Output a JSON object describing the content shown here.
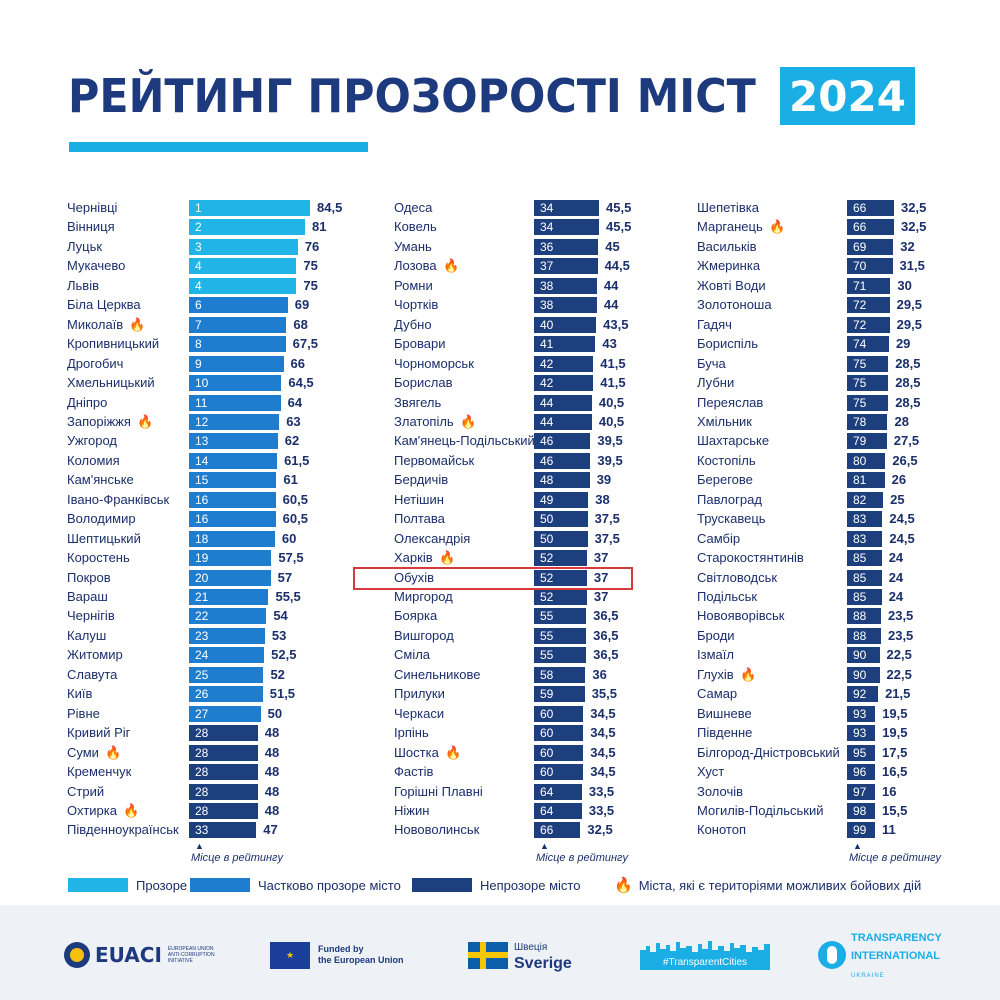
{
  "title": {
    "text": "РЕЙТИНГ ПРОЗОРОСТІ МІСТ",
    "year": "2024"
  },
  "colors": {
    "transparent": "#20b4e7",
    "partial": "#1f7dd0",
    "opaque": "#1d3f7e",
    "accent": "#1aaee4",
    "fire": "#f4a416",
    "highlight": "#d63a3a"
  },
  "axis_caption": "Місце в рейтингу",
  "fire_icon": "fire-icon",
  "highlight_city": "Обухів",
  "chart_data": {
    "type": "bar",
    "orientation": "horizontal",
    "max_score": 84.5,
    "categories": [
      "Прозоре місто",
      "Частково прозоре місто",
      "Непрозоре місто"
    ],
    "columns": [
      [
        {
          "city": "Чернівці",
          "rank": "1",
          "score": "84,5",
          "category": "transparent",
          "war": false
        },
        {
          "city": "Вінниця",
          "rank": "2",
          "score": "81",
          "category": "transparent",
          "war": false
        },
        {
          "city": "Луцьк",
          "rank": "3",
          "score": "76",
          "category": "transparent",
          "war": false
        },
        {
          "city": "Мукачево",
          "rank": "4",
          "score": "75",
          "category": "transparent",
          "war": false
        },
        {
          "city": "Львів",
          "rank": "4",
          "score": "75",
          "category": "transparent",
          "war": false
        },
        {
          "city": "Біла Церква",
          "rank": "6",
          "score": "69",
          "category": "partial",
          "war": false
        },
        {
          "city": "Миколаїв",
          "rank": "7",
          "score": "68",
          "category": "partial",
          "war": true
        },
        {
          "city": "Кропивницький",
          "rank": "8",
          "score": "67,5",
          "category": "partial",
          "war": false
        },
        {
          "city": "Дрогобич",
          "rank": "9",
          "score": "66",
          "category": "partial",
          "war": false
        },
        {
          "city": "Хмельницький",
          "rank": "10",
          "score": "64,5",
          "category": "partial",
          "war": false
        },
        {
          "city": "Дніпро",
          "rank": "11",
          "score": "64",
          "category": "partial",
          "war": false
        },
        {
          "city": "Запоріжжя",
          "rank": "12",
          "score": "63",
          "category": "partial",
          "war": true
        },
        {
          "city": "Ужгород",
          "rank": "13",
          "score": "62",
          "category": "partial",
          "war": false
        },
        {
          "city": "Коломия",
          "rank": "14",
          "score": "61,5",
          "category": "partial",
          "war": false
        },
        {
          "city": "Кам'янське",
          "rank": "15",
          "score": "61",
          "category": "partial",
          "war": false
        },
        {
          "city": "Івано-Франківськ",
          "rank": "16",
          "score": "60,5",
          "category": "partial",
          "war": false
        },
        {
          "city": "Володимир",
          "rank": "16",
          "score": "60,5",
          "category": "partial",
          "war": false
        },
        {
          "city": "Шептицький",
          "rank": "18",
          "score": "60",
          "category": "partial",
          "war": false
        },
        {
          "city": "Коростень",
          "rank": "19",
          "score": "57,5",
          "category": "partial",
          "war": false
        },
        {
          "city": "Покров",
          "rank": "20",
          "score": "57",
          "category": "partial",
          "war": false
        },
        {
          "city": "Вараш",
          "rank": "21",
          "score": "55,5",
          "category": "partial",
          "war": false
        },
        {
          "city": "Чернігів",
          "rank": "22",
          "score": "54",
          "category": "partial",
          "war": false
        },
        {
          "city": "Калуш",
          "rank": "23",
          "score": "53",
          "category": "partial",
          "war": false
        },
        {
          "city": "Житомир",
          "rank": "24",
          "score": "52,5",
          "category": "partial",
          "war": false
        },
        {
          "city": "Славута",
          "rank": "25",
          "score": "52",
          "category": "partial",
          "war": false
        },
        {
          "city": "Київ",
          "rank": "26",
          "score": "51,5",
          "category": "partial",
          "war": false
        },
        {
          "city": "Рівне",
          "rank": "27",
          "score": "50",
          "category": "partial",
          "war": false
        },
        {
          "city": "Кривий Ріг",
          "rank": "28",
          "score": "48",
          "category": "opaque",
          "war": false
        },
        {
          "city": "Суми",
          "rank": "28",
          "score": "48",
          "category": "opaque",
          "war": true
        },
        {
          "city": "Кременчук",
          "rank": "28",
          "score": "48",
          "category": "opaque",
          "war": false
        },
        {
          "city": "Стрий",
          "rank": "28",
          "score": "48",
          "category": "opaque",
          "war": false
        },
        {
          "city": "Охтирка",
          "rank": "28",
          "score": "48",
          "category": "opaque",
          "war": true
        },
        {
          "city": "Південноукраїнськ",
          "rank": "33",
          "score": "47",
          "category": "opaque",
          "war": false
        }
      ],
      [
        {
          "city": "Одеса",
          "rank": "34",
          "score": "45,5",
          "category": "opaque",
          "war": false
        },
        {
          "city": "Ковель",
          "rank": "34",
          "score": "45,5",
          "category": "opaque",
          "war": false
        },
        {
          "city": "Умань",
          "rank": "36",
          "score": "45",
          "category": "opaque",
          "war": false
        },
        {
          "city": "Лозова",
          "rank": "37",
          "score": "44,5",
          "category": "opaque",
          "war": true
        },
        {
          "city": "Ромни",
          "rank": "38",
          "score": "44",
          "category": "opaque",
          "war": false
        },
        {
          "city": "Чортків",
          "rank": "38",
          "score": "44",
          "category": "opaque",
          "war": false
        },
        {
          "city": "Дубно",
          "rank": "40",
          "score": "43,5",
          "category": "opaque",
          "war": false
        },
        {
          "city": "Бровари",
          "rank": "41",
          "score": "43",
          "category": "opaque",
          "war": false
        },
        {
          "city": "Чорноморськ",
          "rank": "42",
          "score": "41,5",
          "category": "opaque",
          "war": false
        },
        {
          "city": "Борислав",
          "rank": "42",
          "score": "41,5",
          "category": "opaque",
          "war": false
        },
        {
          "city": "Звягель",
          "rank": "44",
          "score": "40,5",
          "category": "opaque",
          "war": false
        },
        {
          "city": "Златопіль",
          "rank": "44",
          "score": "40,5",
          "category": "opaque",
          "war": true
        },
        {
          "city": "Кам'янець-Подільський",
          "rank": "46",
          "score": "39,5",
          "category": "opaque",
          "war": false
        },
        {
          "city": "Первомайськ",
          "rank": "46",
          "score": "39,5",
          "category": "opaque",
          "war": false
        },
        {
          "city": "Бердичів",
          "rank": "48",
          "score": "39",
          "category": "opaque",
          "war": false
        },
        {
          "city": "Нетішин",
          "rank": "49",
          "score": "38",
          "category": "opaque",
          "war": false
        },
        {
          "city": "Полтава",
          "rank": "50",
          "score": "37,5",
          "category": "opaque",
          "war": false
        },
        {
          "city": "Олександрія",
          "rank": "50",
          "score": "37,5",
          "category": "opaque",
          "war": false
        },
        {
          "city": "Харків",
          "rank": "52",
          "score": "37",
          "category": "opaque",
          "war": true
        },
        {
          "city": "Обухів",
          "rank": "52",
          "score": "37",
          "category": "opaque",
          "war": false
        },
        {
          "city": "Миргород",
          "rank": "52",
          "score": "37",
          "category": "opaque",
          "war": false
        },
        {
          "city": "Боярка",
          "rank": "55",
          "score": "36,5",
          "category": "opaque",
          "war": false
        },
        {
          "city": "Вишгород",
          "rank": "55",
          "score": "36,5",
          "category": "opaque",
          "war": false
        },
        {
          "city": "Сміла",
          "rank": "55",
          "score": "36,5",
          "category": "opaque",
          "war": false
        },
        {
          "city": "Синельникове",
          "rank": "58",
          "score": "36",
          "category": "opaque",
          "war": false
        },
        {
          "city": "Прилуки",
          "rank": "59",
          "score": "35,5",
          "category": "opaque",
          "war": false
        },
        {
          "city": "Черкаси",
          "rank": "60",
          "score": "34,5",
          "category": "opaque",
          "war": false
        },
        {
          "city": "Ірпінь",
          "rank": "60",
          "score": "34,5",
          "category": "opaque",
          "war": false
        },
        {
          "city": "Шостка",
          "rank": "60",
          "score": "34,5",
          "category": "opaque",
          "war": true
        },
        {
          "city": "Фастів",
          "rank": "60",
          "score": "34,5",
          "category": "opaque",
          "war": false
        },
        {
          "city": "Горішні Плавні",
          "rank": "64",
          "score": "33,5",
          "category": "opaque",
          "war": false
        },
        {
          "city": "Ніжин",
          "rank": "64",
          "score": "33,5",
          "category": "opaque",
          "war": false
        },
        {
          "city": "Нововолинськ",
          "rank": "66",
          "score": "32,5",
          "category": "opaque",
          "war": false
        }
      ],
      [
        {
          "city": "Шепетівка",
          "rank": "66",
          "score": "32,5",
          "category": "opaque",
          "war": false
        },
        {
          "city": "Марганець",
          "rank": "66",
          "score": "32,5",
          "category": "opaque",
          "war": true
        },
        {
          "city": "Васильків",
          "rank": "69",
          "score": "32",
          "category": "opaque",
          "war": false
        },
        {
          "city": "Жмеринка",
          "rank": "70",
          "score": "31,5",
          "category": "opaque",
          "war": false
        },
        {
          "city": "Жовті Води",
          "rank": "71",
          "score": "30",
          "category": "opaque",
          "war": false
        },
        {
          "city": "Золотоноша",
          "rank": "72",
          "score": "29,5",
          "category": "opaque",
          "war": false
        },
        {
          "city": "Гадяч",
          "rank": "72",
          "score": "29,5",
          "category": "opaque",
          "war": false
        },
        {
          "city": "Бориспіль",
          "rank": "74",
          "score": "29",
          "category": "opaque",
          "war": false
        },
        {
          "city": "Буча",
          "rank": "75",
          "score": "28,5",
          "category": "opaque",
          "war": false
        },
        {
          "city": "Лубни",
          "rank": "75",
          "score": "28,5",
          "category": "opaque",
          "war": false
        },
        {
          "city": "Переяслав",
          "rank": "75",
          "score": "28,5",
          "category": "opaque",
          "war": false
        },
        {
          "city": "Хмільник",
          "rank": "78",
          "score": "28",
          "category": "opaque",
          "war": false
        },
        {
          "city": "Шахтарське",
          "rank": "79",
          "score": "27,5",
          "category": "opaque",
          "war": false
        },
        {
          "city": "Костопіль",
          "rank": "80",
          "score": "26,5",
          "category": "opaque",
          "war": false
        },
        {
          "city": "Берегове",
          "rank": "81",
          "score": "26",
          "category": "opaque",
          "war": false
        },
        {
          "city": "Павлоград",
          "rank": "82",
          "score": "25",
          "category": "opaque",
          "war": false
        },
        {
          "city": "Трускавець",
          "rank": "83",
          "score": "24,5",
          "category": "opaque",
          "war": false
        },
        {
          "city": "Самбір",
          "rank": "83",
          "score": "24,5",
          "category": "opaque",
          "war": false
        },
        {
          "city": "Старокостянтинів",
          "rank": "85",
          "score": "24",
          "category": "opaque",
          "war": false
        },
        {
          "city": "Світловодськ",
          "rank": "85",
          "score": "24",
          "category": "opaque",
          "war": false
        },
        {
          "city": "Подільськ",
          "rank": "85",
          "score": "24",
          "category": "opaque",
          "war": false
        },
        {
          "city": "Новояворівськ",
          "rank": "88",
          "score": "23,5",
          "category": "opaque",
          "war": false
        },
        {
          "city": "Броди",
          "rank": "88",
          "score": "23,5",
          "category": "opaque",
          "war": false
        },
        {
          "city": "Ізмаїл",
          "rank": "90",
          "score": "22,5",
          "category": "opaque",
          "war": false
        },
        {
          "city": "Глухів",
          "rank": "90",
          "score": "22,5",
          "category": "opaque",
          "war": true
        },
        {
          "city": "Самар",
          "rank": "92",
          "score": "21,5",
          "category": "opaque",
          "war": false
        },
        {
          "city": "Вишневе",
          "rank": "93",
          "score": "19,5",
          "category": "opaque",
          "war": false
        },
        {
          "city": "Південне",
          "rank": "93",
          "score": "19,5",
          "category": "opaque",
          "war": false
        },
        {
          "city": "Білгород-Дністровський",
          "rank": "95",
          "score": "17,5",
          "category": "opaque",
          "war": false
        },
        {
          "city": "Хуст",
          "rank": "96",
          "score": "16,5",
          "category": "opaque",
          "war": false
        },
        {
          "city": "Золочів",
          "rank": "97",
          "score": "16",
          "category": "opaque",
          "war": false
        },
        {
          "city": "Могилів-Подільський",
          "rank": "98",
          "score": "15,5",
          "category": "opaque",
          "war": false
        },
        {
          "city": "Конотоп",
          "rank": "99",
          "score": "11",
          "category": "opaque",
          "war": false
        }
      ]
    ]
  },
  "legend": {
    "transparent": "Прозоре місто",
    "partial": "Частково прозоре місто",
    "opaque": "Непрозоре місто",
    "war": "Міста, які є територіями можливих бойових дій"
  },
  "footer": {
    "euaci": {
      "name": "EUACI",
      "sub": "European Union Anti-Corruption Initiative"
    },
    "eu": {
      "line1": "Funded by",
      "line2": "the European Union"
    },
    "sweden": {
      "line1": "Швеція",
      "line2": "Sverige"
    },
    "tc": {
      "label": "#TransparentCities"
    },
    "ti": {
      "line1": "TRANSPARENCY",
      "line2": "INTERNATIONAL",
      "line3": "UKRAINE"
    }
  }
}
